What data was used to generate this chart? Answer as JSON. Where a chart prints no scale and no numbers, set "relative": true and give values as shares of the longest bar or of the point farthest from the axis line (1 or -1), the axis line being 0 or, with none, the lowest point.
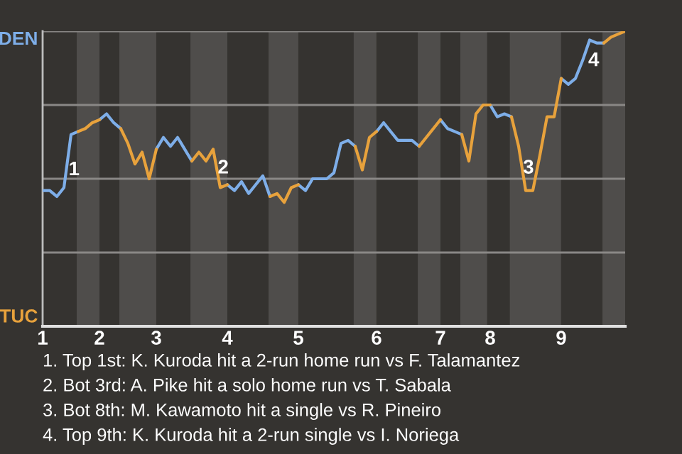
{
  "chart_data": {
    "type": "line",
    "relative": true,
    "categories": [
      "1",
      null,
      null,
      null,
      null,
      null,
      null,
      null,
      "2",
      null,
      null,
      null,
      null,
      null,
      null,
      null,
      "3",
      null,
      null,
      null,
      null,
      null,
      null,
      null,
      null,
      null,
      "4",
      null,
      null,
      null,
      null,
      null,
      null,
      null,
      null,
      null,
      "5",
      null,
      null,
      null,
      null,
      null,
      null,
      null,
      null,
      null,
      null,
      "6",
      null,
      null,
      null,
      null,
      null,
      null,
      null,
      null,
      "7",
      null,
      null,
      null,
      null,
      null,
      null,
      "8",
      null,
      null,
      null,
      null,
      null,
      null,
      null,
      null,
      null,
      "9",
      null,
      null,
      null,
      null,
      null,
      null,
      null,
      null,
      null
    ],
    "series": [
      {
        "color": "#7eaee8",
        "values": [
          0.46,
          0.46,
          0.44,
          0.47,
          0.65,
          0.66,
          null,
          null,
          0.7,
          0.72,
          0.69,
          0.67,
          null,
          null,
          null,
          null,
          0.6,
          0.64,
          0.61,
          0.64,
          0.6,
          0.56,
          null,
          null,
          null,
          null,
          0.48,
          0.46,
          0.49,
          0.45,
          0.48,
          0.51,
          0.44,
          null,
          null,
          null,
          0.48,
          0.46,
          0.5,
          0.5,
          0.5,
          0.52,
          0.62,
          0.63,
          0.61,
          null,
          null,
          0.66,
          0.69,
          0.66,
          0.63,
          0.63,
          0.63,
          0.61,
          null,
          null,
          0.7,
          0.67,
          0.66,
          0.65,
          null,
          null,
          null,
          0.75,
          0.71,
          0.72,
          0.71,
          null,
          null,
          null,
          null,
          null,
          null,
          0.84,
          0.82,
          0.84,
          0.9,
          0.97,
          0.96,
          0.96,
          null,
          null,
          null
        ]
      },
      {
        "color": "#e8a23c",
        "values": [
          null,
          null,
          null,
          null,
          null,
          0.66,
          0.67,
          0.69,
          0.7,
          null,
          null,
          0.67,
          0.62,
          0.55,
          0.59,
          0.5,
          0.6,
          null,
          null,
          null,
          null,
          0.56,
          0.59,
          0.56,
          0.6,
          0.47,
          0.48,
          null,
          null,
          null,
          null,
          null,
          0.44,
          0.45,
          0.42,
          0.47,
          0.48,
          null,
          null,
          null,
          null,
          null,
          null,
          null,
          0.61,
          0.53,
          0.64,
          0.66,
          null,
          null,
          null,
          null,
          null,
          0.61,
          0.64,
          0.67,
          0.7,
          null,
          null,
          0.65,
          0.56,
          0.72,
          0.75,
          0.75,
          null,
          null,
          0.71,
          0.61,
          0.46,
          0.46,
          0.58,
          0.71,
          0.71,
          0.84,
          null,
          null,
          null,
          null,
          null,
          0.96,
          0.98,
          0.99,
          1.0
        ]
      }
    ],
    "ref_lines": [
      {
        "axis": "y",
        "value": 0.25,
        "color": "#8a8886"
      },
      {
        "axis": "y",
        "value": 0.5,
        "color": "#8a8886"
      },
      {
        "axis": "y",
        "value": 0.75,
        "color": "#8a8886"
      },
      {
        "axis": "y",
        "value": 1.0,
        "color": "#8a8886"
      }
    ],
    "annotations": [
      "DEN",
      "TUC",
      "1",
      "2",
      "3",
      "4",
      "1. Top 1st: K. Kuroda hit a 2-run home run vs F. Talamantez",
      "2. Bot 3rd: A. Pike hit a solo home run vs T. Sabala",
      "3. Bot 8th: M. Kawamoto hit a single vs R. Pineiro",
      "4. Top 9th: K. Kuroda hit a 2-run single vs I. Noriega"
    ]
  }
}
